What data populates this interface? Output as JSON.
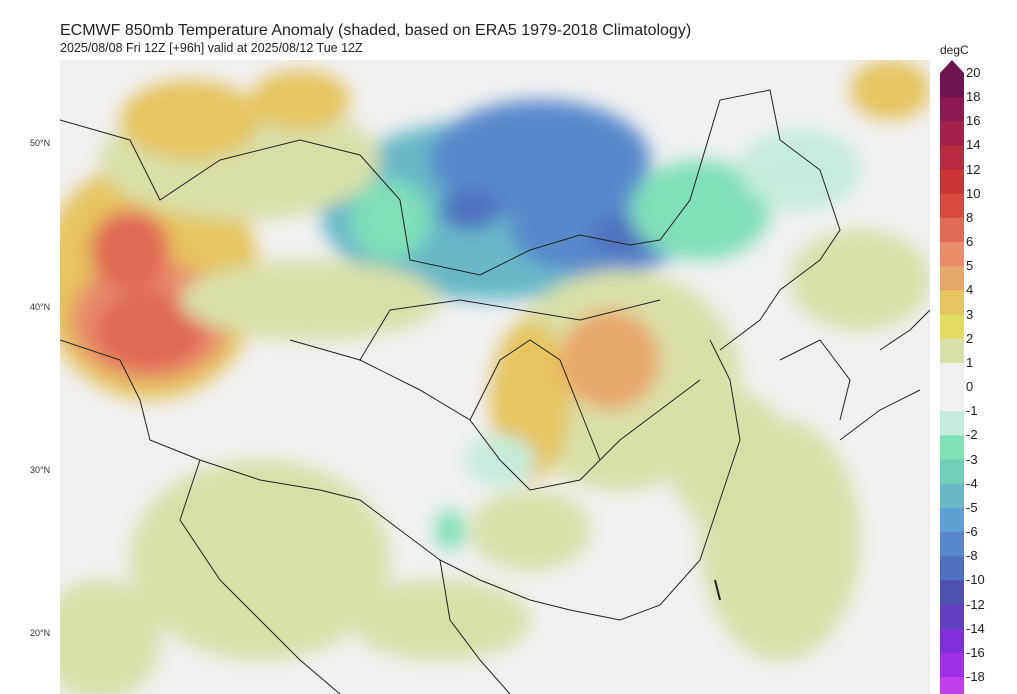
{
  "header": {
    "title": "ECMWF 850mb Temperature Anomaly (shaded, based on ERA5 1979-2018 Climatology)",
    "subtitle": "2025/08/08 Fri 12Z [+96h] valid at 2025/08/12 Tue 12Z"
  },
  "map": {
    "lat_labels": [
      "50°N",
      "40°N",
      "30°N",
      "20°N"
    ]
  },
  "colorbar": {
    "unit": "degC",
    "ticks": [
      "20",
      "18",
      "16",
      "14",
      "12",
      "10",
      "8",
      "6",
      "5",
      "4",
      "3",
      "2",
      "1",
      "0",
      "-1",
      "-2",
      "-3",
      "-4",
      "-5",
      "-6",
      "-8",
      "-10",
      "-12",
      "-14",
      "-16",
      "-18"
    ],
    "colors": [
      "#6e1450",
      "#8a1a4f",
      "#a3204c",
      "#b82a40",
      "#cc3535",
      "#d84a3f",
      "#e06a55",
      "#e88c6a",
      "#e8a86a",
      "#e6c460",
      "#e2dc60",
      "#d8e0a8",
      "#f0f0f0",
      "#f0f0f0",
      "#c4ecdc",
      "#80e0b8",
      "#70d0b8",
      "#68b8c8",
      "#5ca0d4",
      "#5888cc",
      "#5070c0",
      "#5050b0",
      "#6040c0",
      "#8030d8",
      "#a030e8",
      "#c040f0"
    ]
  }
}
